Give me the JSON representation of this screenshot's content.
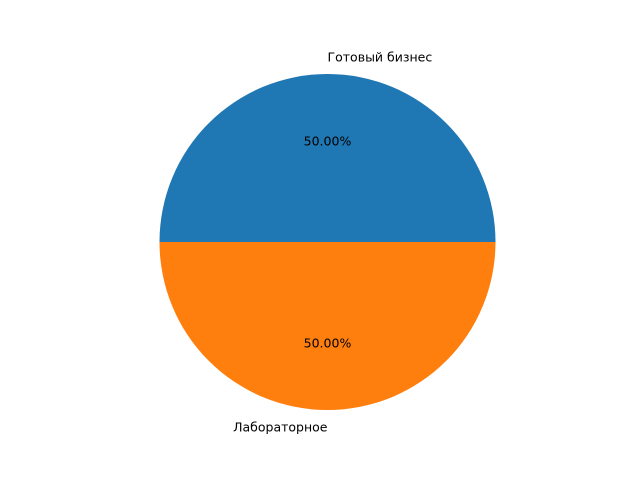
{
  "chart_data": {
    "type": "pie",
    "title": "",
    "labels": [
      "Готовый бизнес",
      "Лабораторное"
    ],
    "values": [
      50,
      50
    ],
    "percent_labels": [
      "50.00%",
      "50.00%"
    ],
    "colors": [
      "#1f77b4",
      "#ff7f0e"
    ],
    "start_angle_deg": 0,
    "direction": "counterclockwise",
    "legend": "none"
  }
}
